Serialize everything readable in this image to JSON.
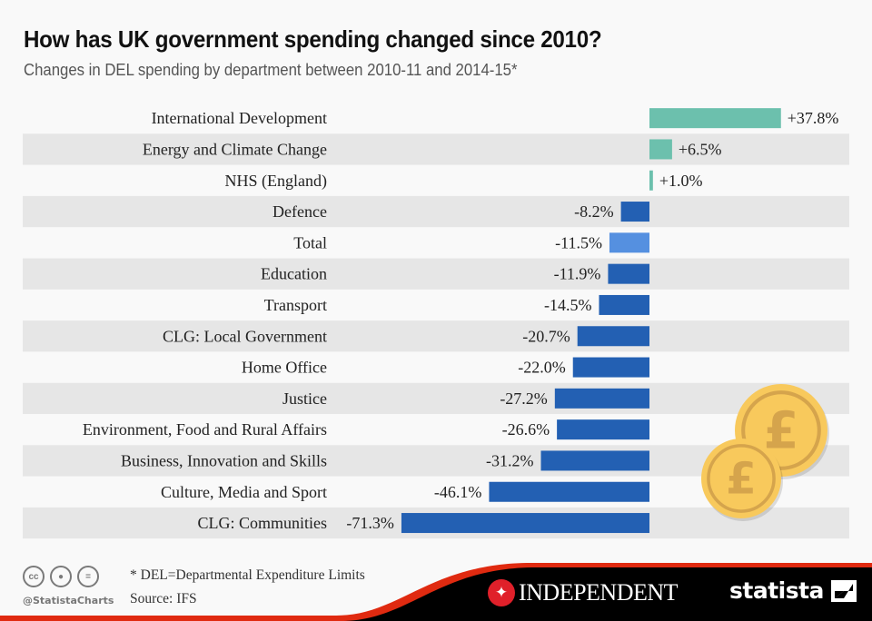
{
  "header": {
    "title": "How has UK government spending changed since 2010?",
    "subtitle": "Changes in DEL spending by department between 2010-11 and 2014-15*"
  },
  "chart_data": {
    "type": "bar",
    "orientation": "horizontal",
    "title": "How has UK government spending changed since 2010?",
    "subtitle": "Changes in DEL spending by department between 2010-11 and 2014-15*",
    "xlabel": "",
    "ylabel": "",
    "unit": "%",
    "grid": false,
    "legend": "none",
    "categories": [
      "International Development",
      "Energy and Climate Change",
      "NHS (England)",
      "Defence",
      "Total",
      "Education",
      "Transport",
      "CLG: Local Government",
      "Home Office",
      "Justice",
      "Environment, Food and Rural Affairs",
      "Business, Innovation and Skills",
      "Culture, Media and Sport",
      "CLG: Communities"
    ],
    "values": [
      37.8,
      6.5,
      1.0,
      -8.2,
      -11.5,
      -11.9,
      -14.5,
      -20.7,
      -22.0,
      -27.2,
      -26.6,
      -31.2,
      -46.1,
      -71.3
    ],
    "value_labels": [
      "+37.8%",
      "+6.5%",
      "+1.0%",
      "-8.2%",
      "-11.5%",
      "-11.9%",
      "-14.5%",
      "-20.7%",
      "-22.0%",
      "-27.2%",
      "-26.6%",
      "-31.2%",
      "-46.1%",
      "-71.3%"
    ],
    "highlight": "Total",
    "xlim": [
      -71.3,
      37.8
    ],
    "colors": {
      "positive": "#6cc0ad",
      "negative": "#2360b3",
      "highlight": "#5590e0",
      "stripe": "#e6e6e6"
    }
  },
  "footer": {
    "note": "* DEL=Departmental Expenditure Limits",
    "source": "Source: IFS",
    "handle": "@StatistaCharts",
    "license_icons": [
      "cc",
      "by",
      "nd"
    ],
    "publisher": "INDEPENDENT",
    "brand": "statista"
  }
}
